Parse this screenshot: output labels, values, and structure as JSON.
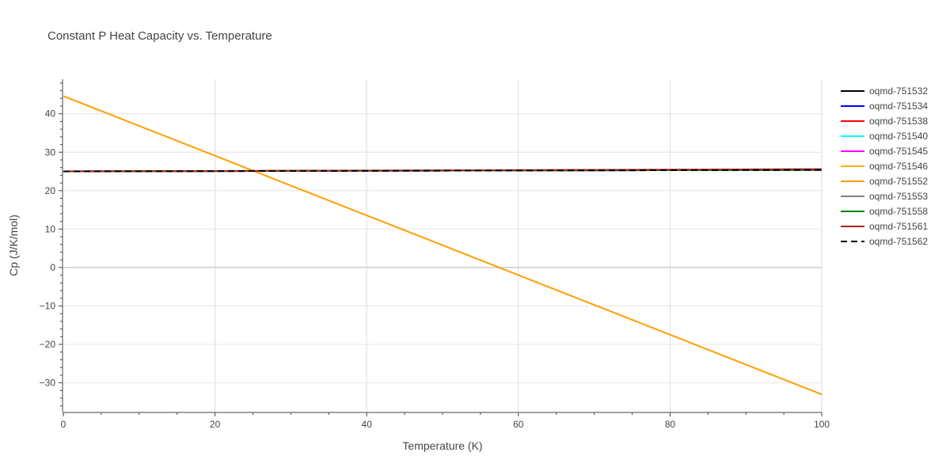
{
  "chart_data": {
    "type": "line",
    "title": "Constant P Heat Capacity vs. Temperature",
    "xlabel": "Temperature (K)",
    "ylabel": "Cp (J/K/mol)",
    "xlim": [
      0,
      100
    ],
    "ylim": [
      -37.5,
      49
    ],
    "xticks": [
      0,
      20,
      40,
      60,
      80,
      100
    ],
    "yticks": [
      -30,
      -20,
      -10,
      0,
      10,
      20,
      30,
      40
    ],
    "grid": true,
    "legend_position": "right",
    "series": [
      {
        "name": "oqmd-751532",
        "color": "#000000",
        "dash": "solid",
        "x": [
          0,
          100
        ],
        "y": [
          25.0,
          25.4
        ]
      },
      {
        "name": "oqmd-751534",
        "color": "#0000ff",
        "dash": "solid",
        "x": [
          0,
          100
        ],
        "y": [
          25.0,
          25.4
        ]
      },
      {
        "name": "oqmd-751538",
        "color": "#ff0000",
        "dash": "solid",
        "x": [
          0,
          100
        ],
        "y": [
          25.0,
          25.5
        ]
      },
      {
        "name": "oqmd-751540",
        "color": "#00ffff",
        "dash": "solid",
        "x": [
          0,
          100
        ],
        "y": [
          25.0,
          25.4
        ]
      },
      {
        "name": "oqmd-751545",
        "color": "#ff00ff",
        "dash": "solid",
        "x": [
          0,
          100
        ],
        "y": [
          25.0,
          25.4
        ]
      },
      {
        "name": "oqmd-751546",
        "color": "#f4b400",
        "dash": "solid",
        "x": [
          0,
          100
        ],
        "y": [
          25.0,
          25.5
        ]
      },
      {
        "name": "oqmd-751552",
        "color": "#ff9e00",
        "dash": "solid",
        "x": [
          0,
          100
        ],
        "y": [
          44.6,
          -33.0
        ]
      },
      {
        "name": "oqmd-751553",
        "color": "#808080",
        "dash": "solid",
        "x": [
          0,
          100
        ],
        "y": [
          25.0,
          25.4
        ]
      },
      {
        "name": "oqmd-751558",
        "color": "#008000",
        "dash": "solid",
        "x": [
          0,
          100
        ],
        "y": [
          25.0,
          25.4
        ]
      },
      {
        "name": "oqmd-751561",
        "color": "#b22222",
        "dash": "solid",
        "x": [
          0,
          100
        ],
        "y": [
          25.0,
          25.6
        ]
      },
      {
        "name": "oqmd-751562",
        "color": "#000000",
        "dash": "dash",
        "x": [
          0,
          100
        ],
        "y": [
          25.0,
          25.4
        ]
      }
    ]
  }
}
